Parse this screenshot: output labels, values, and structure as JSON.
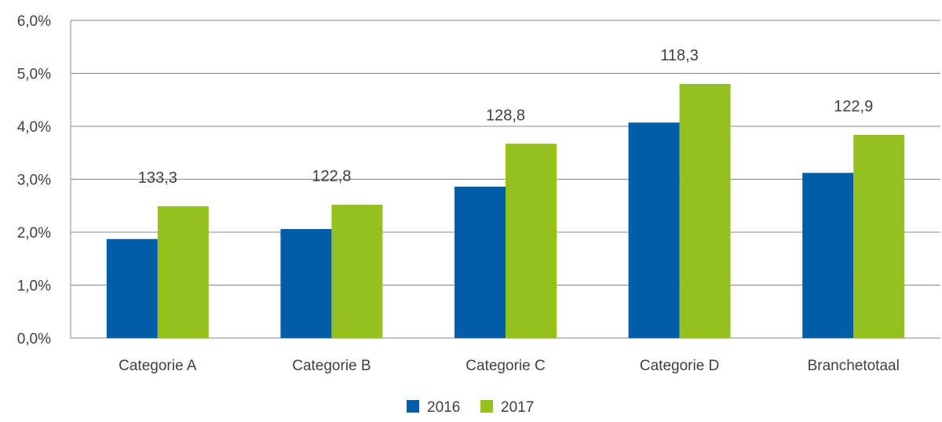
{
  "chart_data": {
    "type": "bar",
    "categories": [
      "Categorie A",
      "Categorie B",
      "Categorie C",
      "Categorie D",
      "Branchetotaal"
    ],
    "series": [
      {
        "name": "2016",
        "values": [
          1.87,
          2.06,
          2.86,
          4.07,
          3.12
        ],
        "color": "#005ea8"
      },
      {
        "name": "2017",
        "values": [
          2.49,
          2.52,
          3.67,
          4.8,
          3.84
        ],
        "color": "#95c11f"
      }
    ],
    "annotations": [
      "133,3",
      "122,8",
      "128,8",
      "118,3",
      "122,9"
    ],
    "yticks": [
      "0,0%",
      "1,0%",
      "2,0%",
      "3,0%",
      "4,0%",
      "5,0%",
      "6,0%"
    ],
    "ylim": [
      0,
      6
    ],
    "grid": true,
    "legend_position": "bottom",
    "colors": {
      "grid": "#8a8a8a",
      "text": "#404040"
    }
  }
}
